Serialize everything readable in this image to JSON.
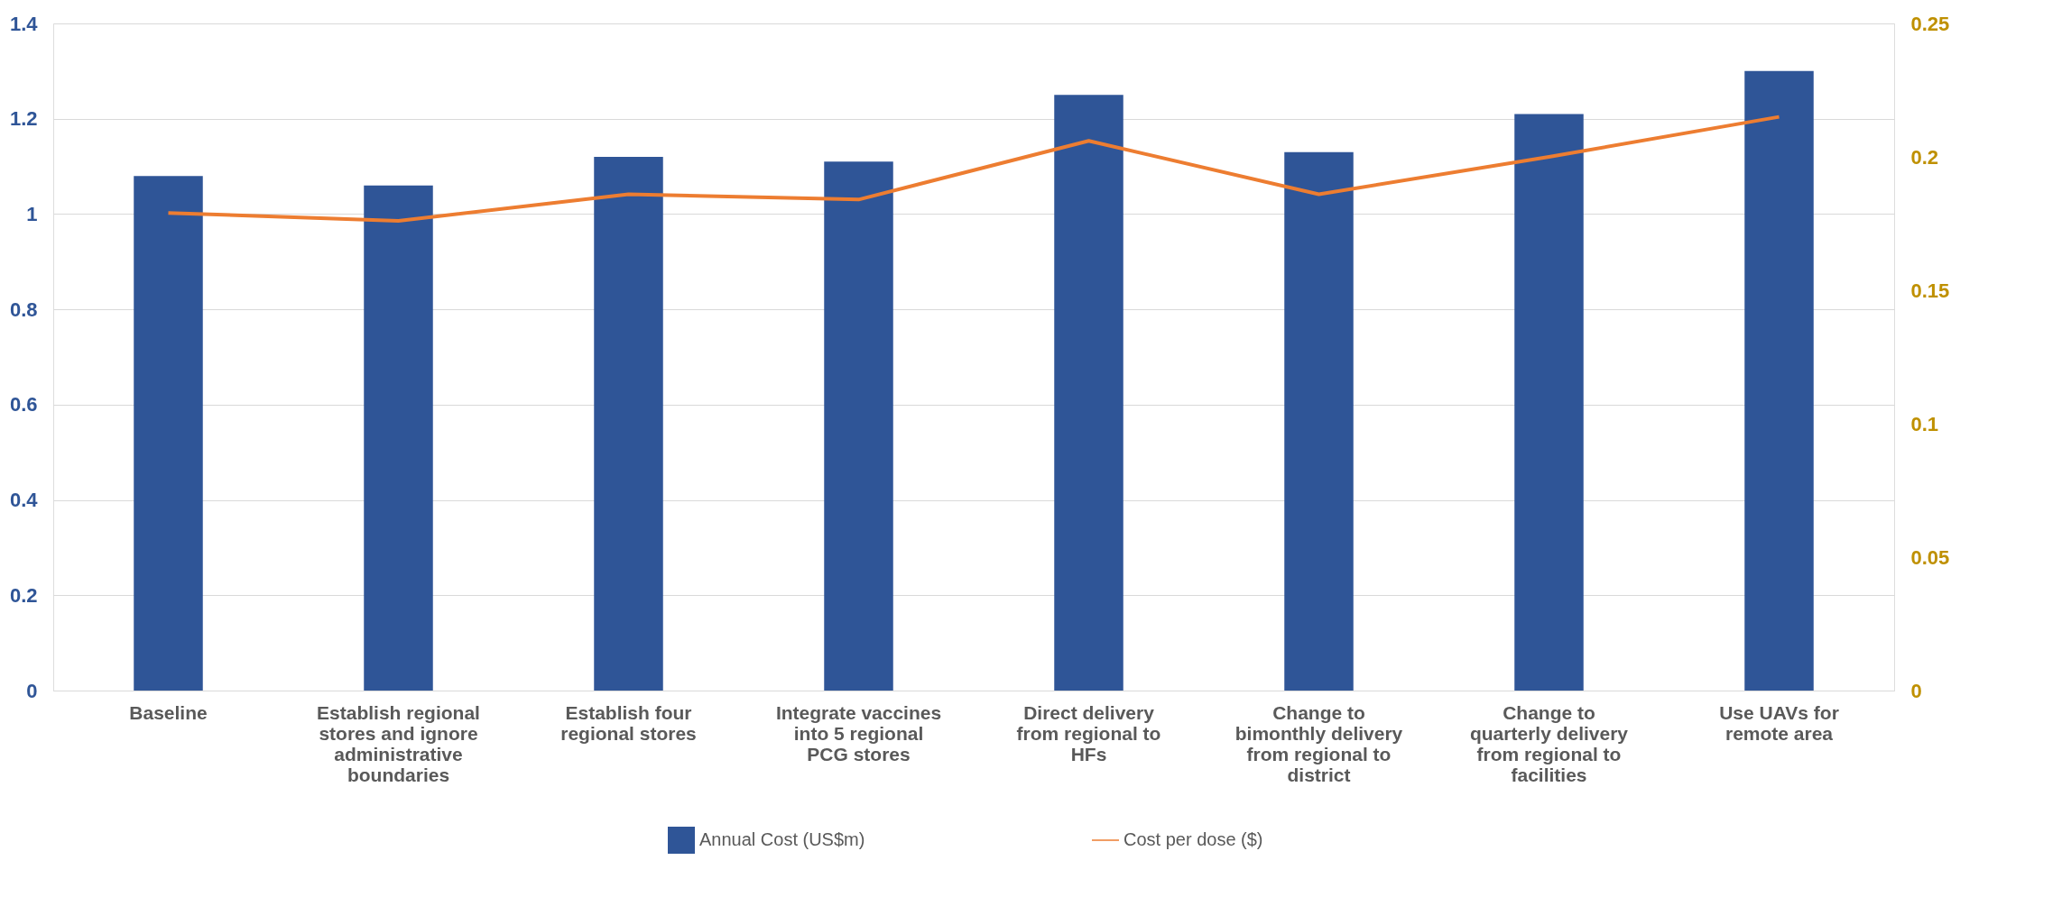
{
  "chart_data": {
    "type": "bar",
    "categories": [
      "Baseline",
      "Establish regional stores and ignore administrative boundaries",
      "Establish four regional stores",
      "Integrate vaccines into 5 regional PCG stores",
      "Direct delivery from regional to HFs",
      "Change to bimonthly delivery from regional to district",
      "Change to quarterly delivery from regional to facilities",
      "Use UAVs for remote area"
    ],
    "series": [
      {
        "name": "Annual Cost (US$m)",
        "color": "#2f5597",
        "values": [
          1.08,
          1.06,
          1.12,
          1.11,
          1.25,
          1.13,
          1.21,
          1.3
        ]
      },
      {
        "name": "Cost per dose ($)",
        "type": "line",
        "axis": "y2",
        "color": "#ed7d31",
        "values": [
          0.179,
          0.176,
          0.186,
          0.184,
          0.206,
          0.186,
          0.2,
          0.215
        ]
      }
    ],
    "ylim": [
      0,
      1.4
    ],
    "yticks": [
      0,
      0.2,
      0.4,
      0.6,
      0.8,
      1,
      1.2,
      1.4
    ],
    "y2lim": [
      0,
      0.25
    ],
    "y2ticks": [
      0,
      0.05,
      0.1,
      0.15,
      0.2,
      0.25
    ],
    "grid": "y",
    "legend": "bottom",
    "marker": "none",
    "line_style": "solid"
  }
}
